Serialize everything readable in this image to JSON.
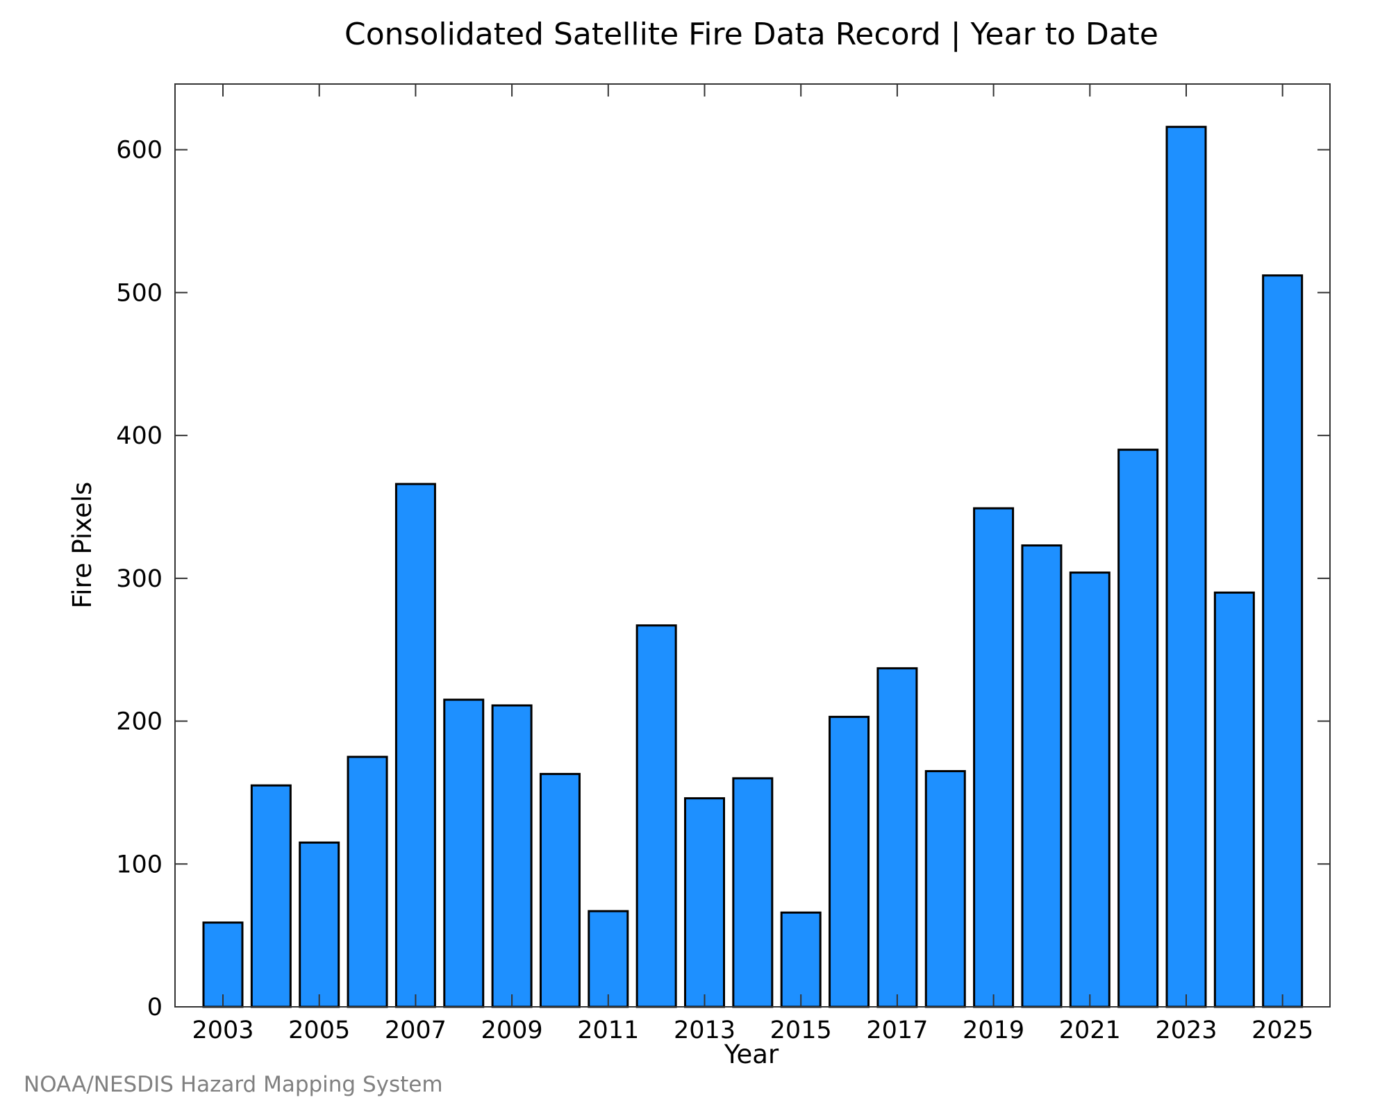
{
  "chart_data": {
    "type": "bar",
    "title": "Consolidated Satellite Fire Data Record | Year to Date",
    "xlabel": "Year",
    "ylabel": "Fire Pixels",
    "categories": [
      "2003",
      "2004",
      "2005",
      "2006",
      "2007",
      "2008",
      "2009",
      "2010",
      "2011",
      "2012",
      "2013",
      "2014",
      "2015",
      "2016",
      "2017",
      "2018",
      "2019",
      "2020",
      "2021",
      "2022",
      "2023",
      "2024",
      "2025"
    ],
    "values": [
      59,
      155,
      115,
      175,
      366,
      215,
      211,
      163,
      67,
      267,
      146,
      160,
      66,
      203,
      237,
      165,
      349,
      323,
      304,
      390,
      616,
      290,
      512
    ],
    "x_tick_labels": [
      "2003",
      "2005",
      "2007",
      "2009",
      "2011",
      "2013",
      "2015",
      "2017",
      "2019",
      "2021",
      "2023",
      "2025"
    ],
    "y_ticks": [
      0,
      100,
      200,
      300,
      400,
      500,
      600
    ],
    "ylim": [
      0,
      646
    ],
    "grid": false,
    "bar_color": "#1e90ff",
    "bar_edge_color": "#000000"
  },
  "credit": "NOAA/NESDIS Hazard Mapping System"
}
